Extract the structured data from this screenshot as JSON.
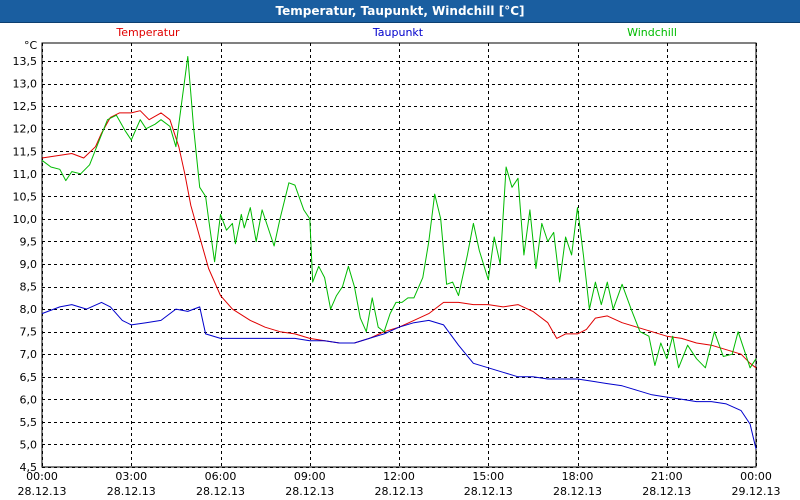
{
  "window": {
    "title": "Temperatur, Taupunkt, Windchill [°C]"
  },
  "chart_data": {
    "type": "line",
    "ylabel": "°C",
    "ylim": [
      4.5,
      13.9
    ],
    "yticks": [
      4.5,
      5.0,
      5.5,
      6.0,
      6.5,
      7.0,
      7.5,
      8.0,
      8.5,
      9.0,
      9.5,
      10.0,
      10.5,
      11.0,
      11.5,
      12.0,
      12.5,
      13.0,
      13.5
    ],
    "ytick_labels": [
      "4,5",
      "5,0",
      "5,5",
      "6,0",
      "6,5",
      "7,0",
      "7,5",
      "8,0",
      "8,5",
      "9,0",
      "9,5",
      "10,0",
      "10,5",
      "11,0",
      "11,5",
      "12,0",
      "12,5",
      "13,0",
      "13,5"
    ],
    "xlim": [
      0,
      24
    ],
    "xticks": [
      {
        "x": 0,
        "time": "00:00",
        "date": "28.12.13"
      },
      {
        "x": 3,
        "time": "03:00",
        "date": "28.12.13"
      },
      {
        "x": 6,
        "time": "06:00",
        "date": "28.12.13"
      },
      {
        "x": 9,
        "time": "09:00",
        "date": "28.12.13"
      },
      {
        "x": 12,
        "time": "12:00",
        "date": "28.12.13"
      },
      {
        "x": 15,
        "time": "15:00",
        "date": "28.12.13"
      },
      {
        "x": 18,
        "time": "18:00",
        "date": "28.12.13"
      },
      {
        "x": 21,
        "time": "21:00",
        "date": "28.12.13"
      },
      {
        "x": 24,
        "time": "00:00",
        "date": "29.12.13"
      }
    ],
    "grid": true,
    "legend_position": "top",
    "series": [
      {
        "name": "Temperatur",
        "color": "#e00000",
        "points": [
          [
            0.0,
            11.35
          ],
          [
            0.5,
            11.4
          ],
          [
            1.0,
            11.45
          ],
          [
            1.4,
            11.35
          ],
          [
            1.8,
            11.6
          ],
          [
            2.0,
            11.9
          ],
          [
            2.3,
            12.25
          ],
          [
            2.6,
            12.35
          ],
          [
            3.0,
            12.35
          ],
          [
            3.3,
            12.4
          ],
          [
            3.6,
            12.2
          ],
          [
            4.0,
            12.35
          ],
          [
            4.3,
            12.2
          ],
          [
            4.6,
            11.6
          ],
          [
            4.8,
            11.0
          ],
          [
            5.0,
            10.3
          ],
          [
            5.3,
            9.6
          ],
          [
            5.6,
            8.9
          ],
          [
            6.0,
            8.3
          ],
          [
            6.4,
            8.0
          ],
          [
            7.0,
            7.75
          ],
          [
            7.5,
            7.6
          ],
          [
            8.0,
            7.5
          ],
          [
            8.5,
            7.45
          ],
          [
            9.0,
            7.35
          ],
          [
            9.5,
            7.3
          ],
          [
            10.0,
            7.25
          ],
          [
            10.5,
            7.25
          ],
          [
            11.0,
            7.35
          ],
          [
            11.5,
            7.5
          ],
          [
            12.0,
            7.6
          ],
          [
            12.5,
            7.75
          ],
          [
            13.0,
            7.9
          ],
          [
            13.5,
            8.15
          ],
          [
            14.0,
            8.15
          ],
          [
            14.5,
            8.1
          ],
          [
            15.0,
            8.1
          ],
          [
            15.5,
            8.05
          ],
          [
            16.0,
            8.1
          ],
          [
            16.5,
            7.95
          ],
          [
            17.0,
            7.7
          ],
          [
            17.3,
            7.35
          ],
          [
            17.6,
            7.45
          ],
          [
            18.0,
            7.45
          ],
          [
            18.3,
            7.55
          ],
          [
            18.6,
            7.8
          ],
          [
            19.0,
            7.85
          ],
          [
            19.5,
            7.7
          ],
          [
            20.0,
            7.6
          ],
          [
            20.5,
            7.5
          ],
          [
            21.0,
            7.4
          ],
          [
            21.5,
            7.35
          ],
          [
            22.0,
            7.25
          ],
          [
            22.5,
            7.2
          ],
          [
            23.0,
            7.1
          ],
          [
            23.5,
            7.0
          ],
          [
            23.8,
            6.8
          ],
          [
            24.0,
            6.7
          ]
        ]
      },
      {
        "name": "Taupunkt",
        "color": "#0000cc",
        "points": [
          [
            0.0,
            7.9
          ],
          [
            0.6,
            8.05
          ],
          [
            1.0,
            8.1
          ],
          [
            1.5,
            8.0
          ],
          [
            2.0,
            8.15
          ],
          [
            2.3,
            8.05
          ],
          [
            2.7,
            7.75
          ],
          [
            3.0,
            7.65
          ],
          [
            3.5,
            7.7
          ],
          [
            4.0,
            7.75
          ],
          [
            4.5,
            8.0
          ],
          [
            4.9,
            7.95
          ],
          [
            5.3,
            8.05
          ],
          [
            5.5,
            7.45
          ],
          [
            6.0,
            7.35
          ],
          [
            6.5,
            7.35
          ],
          [
            7.0,
            7.35
          ],
          [
            7.5,
            7.35
          ],
          [
            8.0,
            7.35
          ],
          [
            8.5,
            7.35
          ],
          [
            9.0,
            7.3
          ],
          [
            9.5,
            7.3
          ],
          [
            10.0,
            7.25
          ],
          [
            10.5,
            7.25
          ],
          [
            11.0,
            7.35
          ],
          [
            11.5,
            7.45
          ],
          [
            12.0,
            7.6
          ],
          [
            12.5,
            7.7
          ],
          [
            13.0,
            7.75
          ],
          [
            13.5,
            7.65
          ],
          [
            14.0,
            7.2
          ],
          [
            14.5,
            6.8
          ],
          [
            15.0,
            6.7
          ],
          [
            15.5,
            6.6
          ],
          [
            16.0,
            6.5
          ],
          [
            16.5,
            6.5
          ],
          [
            17.0,
            6.45
          ],
          [
            17.5,
            6.45
          ],
          [
            18.0,
            6.45
          ],
          [
            18.5,
            6.4
          ],
          [
            19.0,
            6.35
          ],
          [
            19.5,
            6.3
          ],
          [
            20.0,
            6.2
          ],
          [
            20.5,
            6.1
          ],
          [
            21.0,
            6.05
          ],
          [
            21.5,
            6.0
          ],
          [
            22.0,
            5.95
          ],
          [
            22.5,
            5.95
          ],
          [
            23.0,
            5.9
          ],
          [
            23.5,
            5.75
          ],
          [
            23.8,
            5.45
          ],
          [
            24.0,
            4.9
          ]
        ]
      },
      {
        "name": "Windchill",
        "color": "#00bb00",
        "points": [
          [
            0.0,
            11.3
          ],
          [
            0.3,
            11.15
          ],
          [
            0.6,
            11.1
          ],
          [
            0.8,
            10.85
          ],
          [
            1.0,
            11.05
          ],
          [
            1.3,
            11.0
          ],
          [
            1.6,
            11.2
          ],
          [
            1.9,
            11.7
          ],
          [
            2.2,
            12.2
          ],
          [
            2.5,
            12.3
          ],
          [
            2.8,
            11.95
          ],
          [
            3.0,
            11.75
          ],
          [
            3.3,
            12.2
          ],
          [
            3.5,
            12.0
          ],
          [
            3.8,
            12.1
          ],
          [
            4.0,
            12.2
          ],
          [
            4.3,
            12.05
          ],
          [
            4.5,
            11.6
          ],
          [
            4.7,
            12.6
          ],
          [
            4.9,
            13.6
          ],
          [
            5.1,
            12.0
          ],
          [
            5.3,
            10.7
          ],
          [
            5.5,
            10.5
          ],
          [
            5.6,
            10.0
          ],
          [
            5.8,
            9.05
          ],
          [
            6.0,
            10.1
          ],
          [
            6.2,
            9.75
          ],
          [
            6.4,
            9.9
          ],
          [
            6.5,
            9.45
          ],
          [
            6.7,
            10.1
          ],
          [
            6.8,
            9.8
          ],
          [
            7.0,
            10.25
          ],
          [
            7.2,
            9.5
          ],
          [
            7.4,
            10.2
          ],
          [
            7.6,
            9.8
          ],
          [
            7.8,
            9.4
          ],
          [
            8.0,
            10.0
          ],
          [
            8.3,
            10.8
          ],
          [
            8.5,
            10.75
          ],
          [
            8.8,
            10.2
          ],
          [
            9.0,
            10.0
          ],
          [
            9.1,
            8.6
          ],
          [
            9.3,
            8.95
          ],
          [
            9.5,
            8.7
          ],
          [
            9.7,
            8.0
          ],
          [
            9.9,
            8.3
          ],
          [
            10.1,
            8.5
          ],
          [
            10.3,
            8.95
          ],
          [
            10.5,
            8.5
          ],
          [
            10.7,
            7.8
          ],
          [
            10.9,
            7.5
          ],
          [
            11.1,
            8.25
          ],
          [
            11.3,
            7.6
          ],
          [
            11.5,
            7.5
          ],
          [
            11.7,
            7.9
          ],
          [
            11.9,
            8.15
          ],
          [
            12.1,
            8.15
          ],
          [
            12.3,
            8.25
          ],
          [
            12.5,
            8.25
          ],
          [
            12.8,
            8.7
          ],
          [
            13.0,
            9.5
          ],
          [
            13.2,
            10.55
          ],
          [
            13.4,
            10.0
          ],
          [
            13.6,
            8.55
          ],
          [
            13.8,
            8.6
          ],
          [
            14.0,
            8.3
          ],
          [
            14.3,
            9.2
          ],
          [
            14.5,
            9.9
          ],
          [
            14.7,
            9.3
          ],
          [
            15.0,
            8.65
          ],
          [
            15.2,
            9.6
          ],
          [
            15.4,
            9.0
          ],
          [
            15.6,
            11.15
          ],
          [
            15.8,
            10.7
          ],
          [
            16.0,
            10.9
          ],
          [
            16.2,
            9.2
          ],
          [
            16.4,
            10.2
          ],
          [
            16.6,
            8.9
          ],
          [
            16.8,
            9.9
          ],
          [
            17.0,
            9.5
          ],
          [
            17.2,
            9.7
          ],
          [
            17.4,
            8.6
          ],
          [
            17.6,
            9.6
          ],
          [
            17.8,
            9.2
          ],
          [
            18.0,
            10.25
          ],
          [
            18.2,
            9.2
          ],
          [
            18.4,
            8.0
          ],
          [
            18.6,
            8.6
          ],
          [
            18.8,
            8.1
          ],
          [
            19.0,
            8.6
          ],
          [
            19.2,
            8.0
          ],
          [
            19.5,
            8.55
          ],
          [
            19.8,
            8.0
          ],
          [
            20.1,
            7.5
          ],
          [
            20.4,
            7.4
          ],
          [
            20.6,
            6.75
          ],
          [
            20.8,
            7.25
          ],
          [
            21.0,
            6.9
          ],
          [
            21.2,
            7.4
          ],
          [
            21.4,
            6.7
          ],
          [
            21.7,
            7.2
          ],
          [
            22.0,
            6.9
          ],
          [
            22.3,
            6.7
          ],
          [
            22.6,
            7.5
          ],
          [
            22.9,
            6.95
          ],
          [
            23.2,
            7.0
          ],
          [
            23.4,
            7.5
          ],
          [
            23.6,
            7.1
          ],
          [
            23.8,
            6.7
          ],
          [
            24.0,
            6.9
          ]
        ]
      }
    ]
  }
}
